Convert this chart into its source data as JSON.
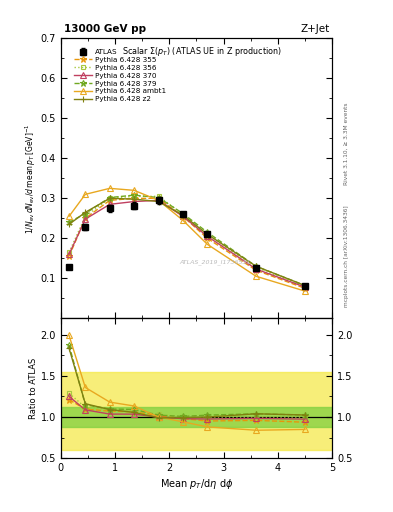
{
  "title_left": "13000 GeV pp",
  "title_right": "Z+Jet",
  "main_subtitle": "Scalar Σ(p_{T}) (ATLAS UE in Z production)",
  "ylabel_main": "1/N_{ev} dN_{ev}/d mean p_{T}  [GeV]$^{-1}$",
  "ylabel_ratio": "Ratio to ATLAS",
  "xlabel": "Mean p$_{T}$/dη dφ",
  "right_label_top": "Rivet 3.1.10, ≥ 3.3M events",
  "right_label_bot": "mcplots.cern.ch [arXiv:1306.3436]",
  "watermark": "ATLAS_2019_I1736531",
  "ylim_main": [
    0.0,
    0.7
  ],
  "ylim_ratio": [
    0.5,
    2.2
  ],
  "xlim": [
    0.0,
    5.0
  ],
  "xticks": [
    0,
    1,
    2,
    3,
    4,
    5
  ],
  "yticks_main": [
    0.1,
    0.2,
    0.3,
    0.4,
    0.5,
    0.6,
    0.7
  ],
  "yticks_ratio": [
    0.5,
    1.0,
    1.5,
    2.0
  ],
  "atlas_x": [
    0.15,
    0.45,
    0.9,
    1.35,
    1.8,
    2.25,
    2.7,
    3.6,
    4.5
  ],
  "atlas_y": [
    0.128,
    0.228,
    0.275,
    0.282,
    0.295,
    0.26,
    0.21,
    0.125,
    0.08
  ],
  "atlas_yerr": [
    0.005,
    0.008,
    0.008,
    0.008,
    0.008,
    0.007,
    0.006,
    0.004,
    0.003
  ],
  "p355_x": [
    0.15,
    0.45,
    0.9,
    1.35,
    1.8,
    2.25,
    2.7,
    3.6,
    4.5
  ],
  "p355_y": [
    0.155,
    0.25,
    0.295,
    0.3,
    0.3,
    0.255,
    0.2,
    0.12,
    0.075
  ],
  "p356_x": [
    0.15,
    0.45,
    0.9,
    1.35,
    1.8,
    2.25,
    2.7,
    3.6,
    4.5
  ],
  "p356_y": [
    0.165,
    0.255,
    0.3,
    0.305,
    0.305,
    0.26,
    0.21,
    0.125,
    0.08
  ],
  "p370_x": [
    0.15,
    0.45,
    0.9,
    1.35,
    1.8,
    2.25,
    2.7,
    3.6,
    4.5
  ],
  "p370_y": [
    0.16,
    0.248,
    0.285,
    0.292,
    0.295,
    0.255,
    0.205,
    0.123,
    0.078
  ],
  "p379_x": [
    0.15,
    0.45,
    0.9,
    1.35,
    1.8,
    2.25,
    2.7,
    3.6,
    4.5
  ],
  "p379_y": [
    0.24,
    0.262,
    0.302,
    0.308,
    0.302,
    0.262,
    0.215,
    0.13,
    0.082
  ],
  "pambt1_x": [
    0.15,
    0.45,
    0.9,
    1.35,
    1.8,
    2.25,
    2.7,
    3.6,
    4.5
  ],
  "pambt1_y": [
    0.255,
    0.31,
    0.325,
    0.32,
    0.295,
    0.245,
    0.185,
    0.105,
    0.068
  ],
  "pz2_x": [
    0.15,
    0.45,
    0.9,
    1.35,
    1.8,
    2.25,
    2.7,
    3.6,
    4.5
  ],
  "pz2_y": [
    0.235,
    0.265,
    0.3,
    0.298,
    0.292,
    0.258,
    0.21,
    0.13,
    0.082
  ],
  "color_355": "#e8960a",
  "color_356": "#a8c840",
  "color_370": "#c04060",
  "color_379": "#70a820",
  "color_ambt1": "#e8a820",
  "color_z2": "#808010",
  "ratio_band_yellow_lo": 0.6,
  "ratio_band_yellow_hi": 1.55,
  "ratio_band_green_lo": 0.88,
  "ratio_band_green_hi": 1.12
}
